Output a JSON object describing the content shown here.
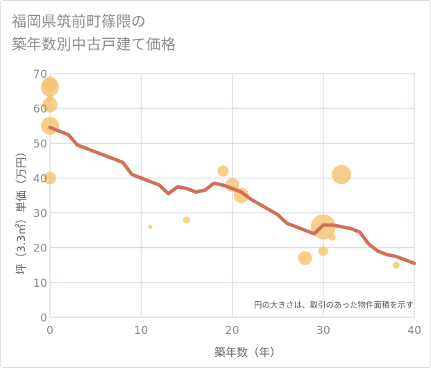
{
  "chart_data": {
    "type": "scatter",
    "title_line1": "福岡県筑前町篠隈の",
    "title_line2": "築年数別中古戸建て価格",
    "xlabel": "築年数（年）",
    "ylabel": "坪（3.3㎡）単価（万円）",
    "xlim": [
      0,
      40
    ],
    "ylim": [
      0,
      70
    ],
    "xticks": [
      0,
      10,
      20,
      30,
      40
    ],
    "yticks": [
      0,
      10,
      20,
      30,
      40,
      50,
      60,
      70
    ],
    "grid": true,
    "note": "円の大きさは、取引のあった物件面積を示す",
    "colors": {
      "bubble": "#f5c36e",
      "line": "#d26f5a",
      "grid": "#c8d0e0"
    },
    "bubbles": [
      {
        "x": 0,
        "y": 67,
        "size": 11
      },
      {
        "x": 0,
        "y": 66,
        "size": 13
      },
      {
        "x": 0,
        "y": 63,
        "size": 5
      },
      {
        "x": 0,
        "y": 61,
        "size": 11
      },
      {
        "x": 0,
        "y": 55,
        "size": 13
      },
      {
        "x": 0,
        "y": 40,
        "size": 9
      },
      {
        "x": 11,
        "y": 26,
        "size": 3
      },
      {
        "x": 15,
        "y": 28,
        "size": 5
      },
      {
        "x": 19,
        "y": 42,
        "size": 8
      },
      {
        "x": 20,
        "y": 38,
        "size": 10
      },
      {
        "x": 21,
        "y": 35,
        "size": 11
      },
      {
        "x": 28,
        "y": 17,
        "size": 10
      },
      {
        "x": 30,
        "y": 26,
        "size": 18
      },
      {
        "x": 30,
        "y": 19,
        "size": 7
      },
      {
        "x": 31,
        "y": 23,
        "size": 5
      },
      {
        "x": 32,
        "y": 41,
        "size": 14
      },
      {
        "x": 38,
        "y": 15,
        "size": 5
      }
    ],
    "trend": {
      "x": [
        0,
        1,
        2,
        3,
        4,
        5,
        6,
        7,
        8,
        9,
        10,
        11,
        12,
        13,
        14,
        15,
        16,
        17,
        18,
        19,
        20,
        21,
        22,
        23,
        24,
        25,
        26,
        27,
        28,
        29,
        30,
        31,
        32,
        33,
        34,
        35,
        36,
        37,
        38,
        39,
        40
      ],
      "y": [
        54.5,
        53.5,
        52.5,
        49.5,
        48.5,
        47.5,
        46.5,
        45.5,
        44.5,
        41,
        40,
        39,
        38,
        35.5,
        37.5,
        37,
        36,
        36.5,
        38.5,
        38,
        37,
        36,
        34,
        32.5,
        31,
        29.5,
        27,
        26,
        25,
        24,
        26.5,
        26.5,
        26,
        25.5,
        24.5,
        21,
        19,
        18,
        17.5,
        16.5,
        15.5
      ]
    }
  }
}
